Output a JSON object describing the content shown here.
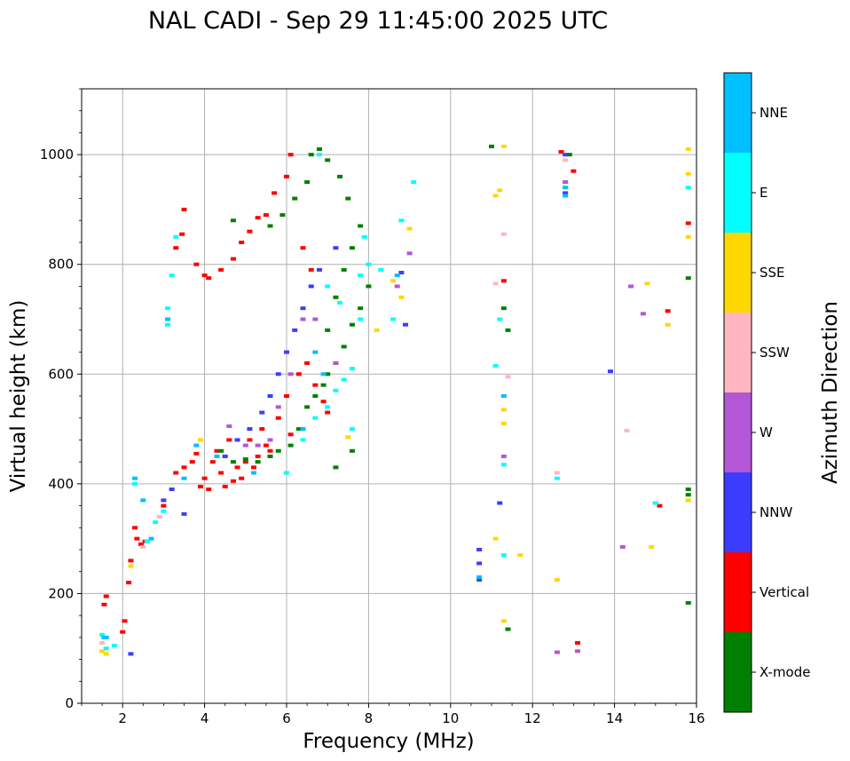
{
  "chart_data": {
    "type": "scatter",
    "title": "NAL CADI - Sep 29 11:45:00 2025 UTC",
    "xlabel": "Frequency (MHz)",
    "ylabel": "Virtual height (km)",
    "xlim": [
      1,
      16
    ],
    "ylim": [
      0,
      1120
    ],
    "xticks": [
      2,
      4,
      6,
      8,
      10,
      12,
      14,
      16
    ],
    "yticks": [
      0,
      200,
      400,
      600,
      800,
      1000
    ],
    "grid": true,
    "colorbar": {
      "label": "Azimuth Direction",
      "categories": [
        {
          "name": "X-mode",
          "color": "#008000"
        },
        {
          "name": "Vertical",
          "color": "#ff0000"
        },
        {
          "name": "NNW",
          "color": "#3c3cff"
        },
        {
          "name": "W",
          "color": "#b357d6"
        },
        {
          "name": "SSW",
          "color": "#ffb6c1"
        },
        {
          "name": "SSE",
          "color": "#ffd700"
        },
        {
          "name": "E",
          "color": "#00ffff"
        },
        {
          "name": "NNE",
          "color": "#00bfff"
        }
      ]
    },
    "series": [
      {
        "name": "Vertical",
        "points": [
          [
            1.55,
            180
          ],
          [
            1.6,
            195
          ],
          [
            2.0,
            130
          ],
          [
            2.05,
            150
          ],
          [
            2.15,
            220
          ],
          [
            2.2,
            260
          ],
          [
            2.3,
            320
          ],
          [
            2.35,
            300
          ],
          [
            2.45,
            290
          ],
          [
            2.55,
            295
          ],
          [
            3.0,
            360
          ],
          [
            3.3,
            420
          ],
          [
            3.5,
            430
          ],
          [
            3.7,
            440
          ],
          [
            3.8,
            455
          ],
          [
            3.9,
            395
          ],
          [
            4.0,
            410
          ],
          [
            4.1,
            390
          ],
          [
            4.2,
            440
          ],
          [
            4.3,
            460
          ],
          [
            4.4,
            420
          ],
          [
            4.5,
            395
          ],
          [
            4.6,
            480
          ],
          [
            4.7,
            405
          ],
          [
            4.8,
            430
          ],
          [
            4.9,
            410
          ],
          [
            5.0,
            440
          ],
          [
            5.1,
            480
          ],
          [
            5.2,
            430
          ],
          [
            5.3,
            450
          ],
          [
            5.4,
            500
          ],
          [
            5.5,
            470
          ],
          [
            5.6,
            460
          ],
          [
            5.8,
            520
          ],
          [
            6.0,
            560
          ],
          [
            6.1,
            490
          ],
          [
            6.3,
            600
          ],
          [
            6.5,
            620
          ],
          [
            6.7,
            580
          ],
          [
            6.9,
            550
          ],
          [
            7.0,
            530
          ],
          [
            3.5,
            900
          ],
          [
            3.8,
            800
          ],
          [
            4.0,
            780
          ],
          [
            4.1,
            775
          ],
          [
            4.4,
            790
          ],
          [
            4.7,
            810
          ],
          [
            4.9,
            840
          ],
          [
            5.1,
            860
          ],
          [
            5.3,
            885
          ],
          [
            5.5,
            890
          ],
          [
            5.7,
            930
          ],
          [
            6.0,
            960
          ],
          [
            6.1,
            1000
          ],
          [
            6.4,
            830
          ],
          [
            6.6,
            790
          ],
          [
            3.3,
            830
          ],
          [
            3.45,
            855
          ],
          [
            15.3,
            715
          ],
          [
            15.8,
            875
          ],
          [
            15.1,
            360
          ],
          [
            13.1,
            110
          ],
          [
            13.0,
            970
          ],
          [
            11.3,
            770
          ],
          [
            12.7,
            1005
          ]
        ]
      },
      {
        "name": "X-mode",
        "points": [
          [
            4.4,
            460
          ],
          [
            4.7,
            440
          ],
          [
            5.0,
            445
          ],
          [
            5.3,
            440
          ],
          [
            5.6,
            450
          ],
          [
            5.8,
            460
          ],
          [
            6.1,
            470
          ],
          [
            6.3,
            500
          ],
          [
            6.5,
            540
          ],
          [
            6.7,
            560
          ],
          [
            6.9,
            580
          ],
          [
            7.0,
            600
          ],
          [
            7.2,
            620
          ],
          [
            7.4,
            650
          ],
          [
            7.6,
            690
          ],
          [
            7.8,
            720
          ],
          [
            8.0,
            760
          ],
          [
            7.0,
            680
          ],
          [
            7.2,
            740
          ],
          [
            7.4,
            790
          ],
          [
            7.6,
            830
          ],
          [
            7.8,
            870
          ],
          [
            6.6,
            1000
          ],
          [
            6.8,
            1010
          ],
          [
            7.0,
            990
          ],
          [
            7.3,
            960
          ],
          [
            7.5,
            920
          ],
          [
            6.2,
            920
          ],
          [
            6.5,
            950
          ],
          [
            5.9,
            890
          ],
          [
            5.6,
            870
          ],
          [
            4.7,
            880
          ],
          [
            11.3,
            720
          ],
          [
            11.4,
            680
          ],
          [
            11.4,
            135
          ],
          [
            12.9,
            1000
          ],
          [
            15.8,
            775
          ],
          [
            15.8,
            390
          ],
          [
            15.8,
            380
          ],
          [
            15.8,
            183
          ],
          [
            11.0,
            1015
          ],
          [
            7.2,
            430
          ],
          [
            7.6,
            460
          ]
        ]
      },
      {
        "name": "NNW",
        "points": [
          [
            2.2,
            90
          ],
          [
            3.5,
            345
          ],
          [
            4.5,
            450
          ],
          [
            4.8,
            480
          ],
          [
            5.1,
            500
          ],
          [
            5.4,
            530
          ],
          [
            5.6,
            560
          ],
          [
            5.8,
            600
          ],
          [
            6.0,
            640
          ],
          [
            6.2,
            680
          ],
          [
            6.4,
            720
          ],
          [
            6.6,
            760
          ],
          [
            6.8,
            790
          ],
          [
            7.2,
            830
          ],
          [
            8.8,
            785
          ],
          [
            8.9,
            690
          ],
          [
            10.7,
            225
          ],
          [
            10.7,
            255
          ],
          [
            10.7,
            280
          ],
          [
            11.2,
            365
          ],
          [
            12.8,
            930
          ],
          [
            12.8,
            1000
          ],
          [
            13.9,
            605
          ],
          [
            3.0,
            370
          ],
          [
            3.2,
            390
          ]
        ]
      },
      {
        "name": "W",
        "points": [
          [
            4.6,
            505
          ],
          [
            5.0,
            470
          ],
          [
            5.3,
            470
          ],
          [
            5.6,
            480
          ],
          [
            5.8,
            540
          ],
          [
            6.1,
            600
          ],
          [
            6.4,
            700
          ],
          [
            6.7,
            700
          ],
          [
            7.2,
            620
          ],
          [
            8.7,
            760
          ],
          [
            9.0,
            820
          ],
          [
            11.3,
            450
          ],
          [
            12.6,
            93
          ],
          [
            13.1,
            95
          ],
          [
            14.2,
            285
          ],
          [
            14.4,
            760
          ],
          [
            14.7,
            710
          ],
          [
            15.0,
            365
          ],
          [
            12.8,
            950
          ]
        ]
      },
      {
        "name": "SSW",
        "points": [
          [
            1.5,
            110
          ],
          [
            2.5,
            285
          ],
          [
            2.9,
            340
          ],
          [
            11.1,
            765
          ],
          [
            11.3,
            855
          ],
          [
            11.4,
            595
          ],
          [
            12.6,
            420
          ],
          [
            14.3,
            497
          ],
          [
            12.8,
            990
          ]
        ]
      },
      {
        "name": "SSE",
        "points": [
          [
            1.5,
            95
          ],
          [
            1.6,
            90
          ],
          [
            2.2,
            250
          ],
          [
            3.9,
            480
          ],
          [
            7.5,
            485
          ],
          [
            8.2,
            680
          ],
          [
            8.6,
            770
          ],
          [
            8.8,
            740
          ],
          [
            9.0,
            865
          ],
          [
            11.1,
            925
          ],
          [
            11.2,
            935
          ],
          [
            11.1,
            300
          ],
          [
            11.3,
            535
          ],
          [
            11.3,
            510
          ],
          [
            11.3,
            150
          ],
          [
            11.7,
            270
          ],
          [
            12.6,
            225
          ],
          [
            14.8,
            765
          ],
          [
            14.9,
            285
          ],
          [
            15.3,
            690
          ],
          [
            15.8,
            1010
          ],
          [
            15.8,
            965
          ],
          [
            15.8,
            850
          ],
          [
            15.8,
            370
          ],
          [
            11.3,
            1015
          ]
        ]
      },
      {
        "name": "E",
        "points": [
          [
            1.5,
            125
          ],
          [
            1.6,
            100
          ],
          [
            1.8,
            105
          ],
          [
            2.3,
            400
          ],
          [
            2.6,
            295
          ],
          [
            2.8,
            330
          ],
          [
            3.0,
            350
          ],
          [
            3.1,
            690
          ],
          [
            3.1,
            720
          ],
          [
            3.2,
            780
          ],
          [
            3.3,
            850
          ],
          [
            6.0,
            420
          ],
          [
            6.4,
            480
          ],
          [
            6.7,
            520
          ],
          [
            7.0,
            540
          ],
          [
            7.2,
            570
          ],
          [
            7.4,
            590
          ],
          [
            7.6,
            610
          ],
          [
            7.8,
            700
          ],
          [
            7.8,
            780
          ],
          [
            7.9,
            850
          ],
          [
            8.0,
            800
          ],
          [
            8.3,
            790
          ],
          [
            8.6,
            700
          ],
          [
            8.8,
            880
          ],
          [
            9.1,
            950
          ],
          [
            7.0,
            760
          ],
          [
            7.3,
            730
          ],
          [
            11.1,
            615
          ],
          [
            11.2,
            700
          ],
          [
            11.3,
            270
          ],
          [
            11.3,
            435
          ],
          [
            12.6,
            410
          ],
          [
            15.0,
            365
          ],
          [
            15.8,
            940
          ],
          [
            7.6,
            500
          ],
          [
            6.8,
            1000
          ]
        ]
      },
      {
        "name": "NNE",
        "points": [
          [
            1.55,
            120
          ],
          [
            1.6,
            120
          ],
          [
            2.3,
            410
          ],
          [
            2.5,
            370
          ],
          [
            2.7,
            300
          ],
          [
            3.1,
            700
          ],
          [
            3.5,
            410
          ],
          [
            3.8,
            470
          ],
          [
            4.3,
            450
          ],
          [
            5.2,
            420
          ],
          [
            6.4,
            500
          ],
          [
            6.7,
            640
          ],
          [
            6.9,
            600
          ],
          [
            8.7,
            780
          ],
          [
            12.8,
            925
          ],
          [
            12.8,
            940
          ],
          [
            11.3,
            560
          ],
          [
            10.7,
            230
          ]
        ]
      }
    ]
  }
}
